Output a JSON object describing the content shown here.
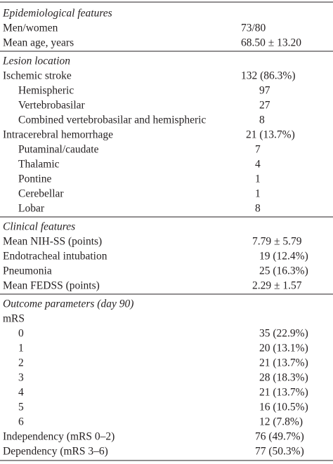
{
  "table": {
    "sections": [
      {
        "title": "Epidemiological features",
        "rows": [
          {
            "label": "Men/women",
            "value": "73/80"
          },
          {
            "label": "Mean age, years",
            "value": "68.50 ± 13.20"
          }
        ]
      },
      {
        "title": "Lesion location",
        "rows": [
          {
            "label": "Ischemic stroke",
            "value": "132 (86.3%)",
            "children": [
              {
                "label": "Hemispheric",
                "value": "97"
              },
              {
                "label": "Vertebrobasilar",
                "value": "27"
              },
              {
                "label": "Combined vertebrobasilar and hemispheric",
                "value": "8"
              }
            ]
          },
          {
            "label": "Intracerebral hemorrhage",
            "value": "21 (13.7%)",
            "children": [
              {
                "label": "Putaminal/caudate",
                "value": "7"
              },
              {
                "label": "Thalamic",
                "value": "4"
              },
              {
                "label": "Pontine",
                "value": "1"
              },
              {
                "label": "Cerebellar",
                "value": "1"
              },
              {
                "label": "Lobar",
                "value": "8"
              }
            ]
          }
        ]
      },
      {
        "title": "Clinical features",
        "rows": [
          {
            "label": "Mean NIH-SS (points)",
            "value": "7.79 ± 5.79"
          },
          {
            "label": "Endotracheal intubation",
            "value": "19 (12.4%)"
          },
          {
            "label": "Pneumonia",
            "value": "25 (16.3%)"
          },
          {
            "label": "Mean FEDSS (points)",
            "value": "2.29 ± 1.57"
          }
        ]
      },
      {
        "title": "Outcome parameters (day 90)",
        "rows": [
          {
            "label": "mRS",
            "children": [
              {
                "label": "0",
                "value": "35 (22.9%)"
              },
              {
                "label": "1",
                "value": "20 (13.1%)"
              },
              {
                "label": "2",
                "value": "21 (13.7%)"
              },
              {
                "label": "3",
                "value": "28 (18.3%)"
              },
              {
                "label": "4",
                "value": "21 (13.7%)"
              },
              {
                "label": "5",
                "value": "16 (10.5%)"
              },
              {
                "label": "6",
                "value": "12 (7.8%)"
              }
            ]
          },
          {
            "label": "Independency (mRS 0–2)",
            "value": "76 (49.7%)"
          },
          {
            "label": "Dependency (mRS 3–6)",
            "value": "77 (50.3%)"
          }
        ]
      }
    ]
  }
}
